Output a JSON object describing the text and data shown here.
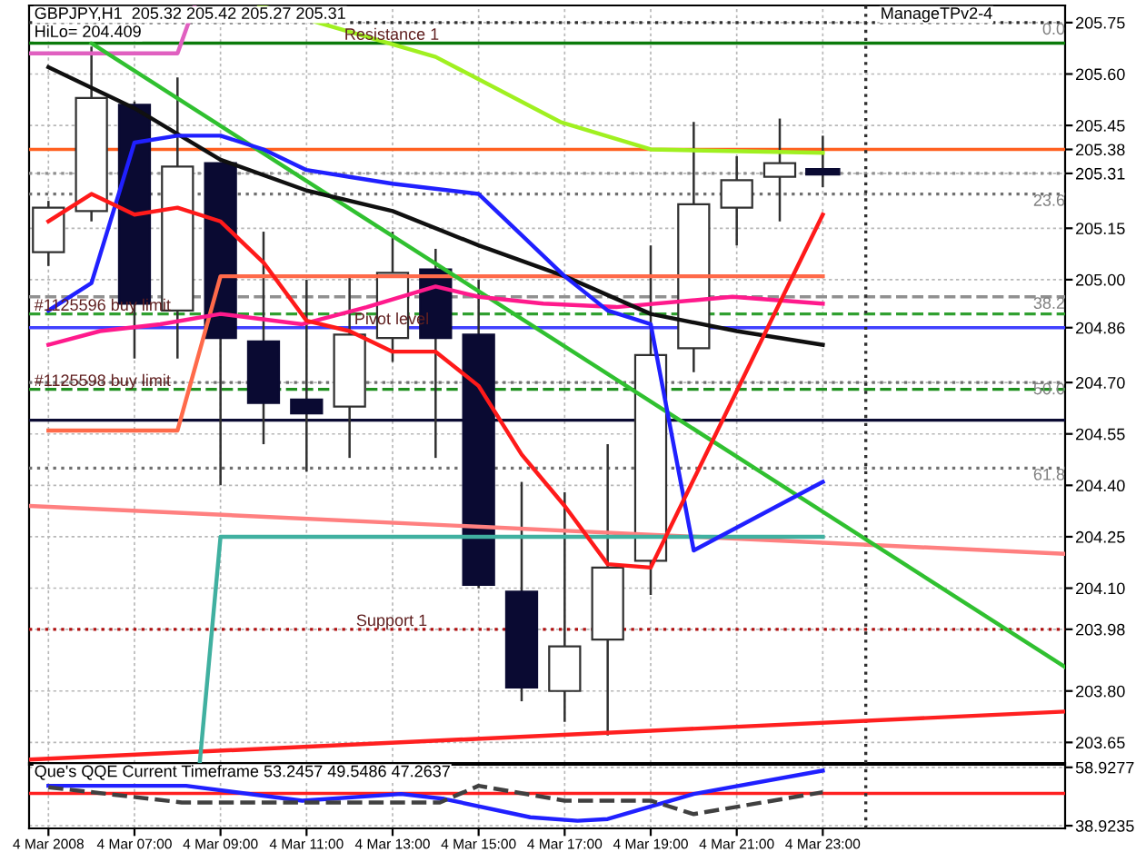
{
  "chart_data": [
    {
      "type": "candlestick",
      "xlim": [
        "2008-03-04T04:33",
        "2008-03-05T04:38"
      ],
      "ylim": [
        203.59,
        205.8
      ],
      "xticks": [
        {
          "value": "2008-03-04T05:00",
          "label": null
        },
        {
          "value": "2008-03-04T07:00",
          "label": null
        },
        {
          "value": "2008-03-04T09:00",
          "label": null
        },
        {
          "value": "2008-03-04T11:00",
          "label": null
        },
        {
          "value": "2008-03-04T13:00",
          "label": null
        },
        {
          "value": "2008-03-04T15:00",
          "label": null
        },
        {
          "value": "2008-03-04T17:00",
          "label": null
        },
        {
          "value": "2008-03-04T19:00",
          "label": null
        },
        {
          "value": "2008-03-04T21:00",
          "label": null
        },
        {
          "value": "2008-03-04T23:00",
          "label": null
        }
      ],
      "yticks": [
        {
          "value": 203.65,
          "label": "203.65"
        },
        {
          "value": 203.8,
          "label": "203.80"
        },
        {
          "value": 203.98,
          "label": "203.98"
        },
        {
          "value": 204.1,
          "label": "204.10"
        },
        {
          "value": 204.25,
          "label": "204.25"
        },
        {
          "value": 204.4,
          "label": "204.40"
        },
        {
          "value": 204.55,
          "label": "204.55"
        },
        {
          "value": 204.7,
          "label": "204.70"
        },
        {
          "value": 204.86,
          "label": "204.86"
        },
        {
          "value": 205.0,
          "label": "205.00"
        },
        {
          "value": 205.15,
          "label": "205.15"
        },
        {
          "value": 205.31,
          "label": "205.31"
        },
        {
          "value": 205.38,
          "label": "205.38"
        },
        {
          "value": 205.45,
          "label": "205.45"
        },
        {
          "value": 205.6,
          "label": "205.60"
        },
        {
          "value": 205.75,
          "label": "205.75"
        }
      ],
      "tick_labels": "y",
      "grid": true,
      "x": [
        "2008-03-04T05:00",
        "2008-03-04T06:00",
        "2008-03-04T07:00",
        "2008-03-04T08:00",
        "2008-03-04T09:00",
        "2008-03-04T10:00",
        "2008-03-04T11:00",
        "2008-03-04T12:00",
        "2008-03-04T13:00",
        "2008-03-04T14:00",
        "2008-03-04T15:00",
        "2008-03-04T16:00",
        "2008-03-04T17:00",
        "2008-03-04T18:00",
        "2008-03-04T19:00",
        "2008-03-04T20:00",
        "2008-03-04T21:00",
        "2008-03-04T22:00",
        "2008-03-04T23:00"
      ],
      "ohlc": [
        [
          205.08,
          205.23,
          205.04,
          205.21
        ],
        [
          205.2,
          205.68,
          205.17,
          205.53
        ],
        [
          205.51,
          205.52,
          204.77,
          204.93
        ],
        [
          204.91,
          205.59,
          204.77,
          205.33
        ],
        [
          205.34,
          205.34,
          204.4,
          204.83
        ],
        [
          204.82,
          205.14,
          204.52,
          204.64
        ],
        [
          204.65,
          205.0,
          204.44,
          204.61
        ],
        [
          204.63,
          205.01,
          204.48,
          204.84
        ],
        [
          204.83,
          205.14,
          204.76,
          205.02
        ],
        [
          205.03,
          205.09,
          204.48,
          204.83
        ],
        [
          204.84,
          205.0,
          204.1,
          204.11
        ],
        [
          204.09,
          204.41,
          203.77,
          203.81
        ],
        [
          203.8,
          204.38,
          203.71,
          203.93
        ],
        [
          203.95,
          204.52,
          203.67,
          204.16
        ],
        [
          204.18,
          205.1,
          204.08,
          204.78
        ],
        [
          204.8,
          205.46,
          204.73,
          205.22
        ],
        [
          205.21,
          205.36,
          205.1,
          205.29
        ],
        [
          205.3,
          205.47,
          205.17,
          205.34
        ],
        [
          205.32,
          205.42,
          205.27,
          205.31
        ]
      ],
      "colors": [
        "#ffffff",
        "#ffffff",
        "#0a0a32",
        "#ffffff",
        "#0a0a32",
        "#0a0a32",
        "#0a0a32",
        "#ffffff",
        "#ffffff",
        "#0a0a32",
        "#0a0a32",
        "#0a0a32",
        "#ffffff",
        "#ffffff",
        "#ffffff",
        "#ffffff",
        "#ffffff",
        "#ffffff",
        "#0a0a32"
      ],
      "series": [
        {
          "type": "line",
          "color": "#ff8080",
          "line_style": "solid",
          "x": [
            "2008-03-04T04:33",
            "2008-03-05T04:38"
          ],
          "values": [
            204.34,
            204.2
          ]
        },
        {
          "type": "line",
          "color": "#ff2020",
          "line_style": "solid",
          "x": [
            "2008-03-04T04:33",
            "2008-03-05T04:38"
          ],
          "values": [
            203.6,
            203.74
          ]
        },
        {
          "type": "line",
          "color": "#ff6a4a",
          "line_style": "solid",
          "x": [
            "2008-03-04T05:00",
            "2008-03-04T08:00",
            "2008-03-04T09:00",
            "2008-03-04T23:00"
          ],
          "values": [
            204.56,
            204.56,
            205.01,
            205.01
          ]
        },
        {
          "type": "line",
          "color": "#40b0a0",
          "line_style": "solid",
          "x": [
            "2008-03-04T08:31",
            "2008-03-04T09:00",
            "2008-03-04T23:00"
          ],
          "values": [
            203.59,
            204.25,
            204.25
          ]
        },
        {
          "type": "line",
          "color": "#e060c0",
          "line_style": "solid",
          "x": [
            "2008-03-04T04:33",
            "2008-03-04T08:00",
            "2008-03-04T08:24"
          ],
          "values": [
            205.66,
            205.66,
            205.8
          ]
        },
        {
          "type": "line",
          "color": "#a0f020",
          "line_style": "solid",
          "x": [
            "2008-03-04T09:54",
            "2008-03-04T14:00",
            "2008-03-04T16:54",
            "2008-03-04T19:00",
            "2008-03-04T23:00"
          ],
          "values": [
            205.8,
            205.65,
            205.46,
            205.38,
            205.37
          ]
        },
        {
          "type": "line",
          "color": "#30c030",
          "line_style": "solid",
          "x": [
            "2008-03-04T06:00",
            "2008-03-05T04:38"
          ],
          "values": [
            205.69,
            203.87
          ]
        },
        {
          "type": "line",
          "color": "#ff1a8c",
          "line_style": "solid",
          "x": [
            "2008-03-04T05:00",
            "2008-03-04T06:12",
            "2008-03-04T07:36",
            "2008-03-04T09:00",
            "2008-03-04T10:54",
            "2008-03-04T12:24",
            "2008-03-04T14:00",
            "2008-03-04T15:00",
            "2008-03-04T16:30",
            "2008-03-04T18:12",
            "2008-03-04T20:54",
            "2008-03-04T23:00"
          ],
          "values": [
            204.81,
            204.85,
            204.87,
            204.9,
            204.87,
            204.92,
            204.98,
            204.95,
            204.93,
            204.92,
            204.95,
            204.93
          ]
        },
        {
          "type": "line",
          "color": "#101010",
          "line_style": "solid",
          "x": [
            "2008-03-04T05:00",
            "2008-03-04T07:00",
            "2008-03-04T09:00",
            "2008-03-04T11:00",
            "2008-03-04T13:00",
            "2008-03-04T15:00",
            "2008-03-04T17:00",
            "2008-03-04T19:00",
            "2008-03-04T21:00",
            "2008-03-04T23:00"
          ],
          "values": [
            205.62,
            205.5,
            205.35,
            205.26,
            205.2,
            205.1,
            205.01,
            204.9,
            204.85,
            204.81
          ]
        },
        {
          "type": "line",
          "color": "#2020ff",
          "line_style": "solid",
          "x": [
            "2008-03-04T05:00",
            "2008-03-04T06:00",
            "2008-03-04T07:00",
            "2008-03-04T08:00",
            "2008-03-04T09:00",
            "2008-03-04T10:00",
            "2008-03-04T11:00",
            "2008-03-04T12:00",
            "2008-03-04T13:00",
            "2008-03-04T15:00",
            "2008-03-04T17:00",
            "2008-03-04T18:00",
            "2008-03-04T19:00",
            "2008-03-04T20:00",
            "2008-03-04T23:00"
          ],
          "values": [
            204.91,
            204.99,
            205.4,
            205.42,
            205.42,
            205.38,
            205.32,
            205.3,
            205.28,
            205.25,
            205.01,
            204.91,
            204.87,
            204.21,
            204.41
          ]
        },
        {
          "type": "line",
          "color": "#ff1a1a",
          "line_style": "solid",
          "x": [
            "2008-03-04T05:00",
            "2008-03-04T06:00",
            "2008-03-04T07:00",
            "2008-03-04T08:00",
            "2008-03-04T09:00",
            "2008-03-04T10:00",
            "2008-03-04T11:00",
            "2008-03-04T12:00",
            "2008-03-04T13:00",
            "2008-03-04T14:00",
            "2008-03-04T15:00",
            "2008-03-04T16:00",
            "2008-03-04T17:00",
            "2008-03-04T18:00",
            "2008-03-04T19:00",
            "2008-03-04T23:00"
          ],
          "values": [
            205.17,
            205.25,
            205.19,
            205.21,
            205.17,
            205.05,
            204.88,
            204.85,
            204.79,
            204.79,
            204.69,
            204.49,
            204.34,
            204.17,
            204.16,
            205.19
          ]
        }
      ],
      "ref_lines": [
        {
          "axis": "y",
          "value": 205.75,
          "color": "#303030",
          "line_style": "dotted"
        },
        {
          "axis": "y",
          "value": 205.69,
          "color": "#0a7a0a",
          "line_style": "solid",
          "label": "Resistance 1"
        },
        {
          "axis": "y",
          "value": 205.38,
          "color": "#ff6020",
          "line_style": "solid"
        },
        {
          "axis": "y",
          "value": 205.31,
          "color": "#909090",
          "line_style": "dotted"
        },
        {
          "axis": "y",
          "value": 205.25,
          "color": "#707070",
          "line_style": "dotted"
        },
        {
          "axis": "y",
          "value": 204.95,
          "color": "#909090",
          "line_style": "dashed"
        },
        {
          "axis": "y",
          "value": 204.9,
          "color": "#30a030",
          "line_style": "dashed",
          "label": "#1125596 buy limit"
        },
        {
          "axis": "y",
          "value": 204.86,
          "color": "#4040ff",
          "line_style": "solid",
          "label": "Pivot level"
        },
        {
          "axis": "y",
          "value": 204.7,
          "color": "#707070",
          "line_style": "dotted"
        },
        {
          "axis": "y",
          "value": 204.68,
          "color": "#209020",
          "line_style": "dashed",
          "label": "#1125598 buy limit"
        },
        {
          "axis": "y",
          "value": 204.59,
          "color": "#0a0a32",
          "line_style": "solid"
        },
        {
          "axis": "y",
          "value": 204.45,
          "color": "#707070",
          "line_style": "dotted"
        },
        {
          "axis": "y",
          "value": 203.98,
          "color": "#b01010",
          "line_style": "dotted",
          "label": "Support 1"
        },
        {
          "axis": "x",
          "value": "2008-03-05T00:00",
          "color": "#303030",
          "line_style": "dotted"
        }
      ],
      "annotations": [
        "GBPJPY,H1  205.32 205.42 205.27 205.31",
        "HiLo= 204.409",
        "ManageTPv2-4",
        {
          "text": "0.0",
          "x": "2008-03-05T04:38",
          "y": 205.75
        },
        {
          "text": "23.6",
          "x": "2008-03-05T04:38",
          "y": 205.25
        },
        {
          "text": "38.2",
          "x": "2008-03-05T04:38",
          "y": 204.95
        },
        {
          "text": "50.0",
          "x": "2008-03-05T04:38",
          "y": 204.7
        },
        {
          "text": "61.8",
          "x": "2008-03-05T04:38",
          "y": 204.45
        }
      ]
    },
    {
      "type": "line",
      "xlim": [
        "2008-03-04T04:33",
        "2008-03-05T04:38"
      ],
      "ylim": [
        38.0,
        59.8
      ],
      "xticks": [
        {
          "value": "2008-03-04T05:00",
          "label": "4 Mar 2008"
        },
        {
          "value": "2008-03-04T07:00",
          "label": "4 Mar 07:00"
        },
        {
          "value": "2008-03-04T09:00",
          "label": "4 Mar 09:00"
        },
        {
          "value": "2008-03-04T11:00",
          "label": "4 Mar 11:00"
        },
        {
          "value": "2008-03-04T13:00",
          "label": "4 Mar 13:00"
        },
        {
          "value": "2008-03-04T15:00",
          "label": "4 Mar 15:00"
        },
        {
          "value": "2008-03-04T17:00",
          "label": "4 Mar 17:00"
        },
        {
          "value": "2008-03-04T19:00",
          "label": "4 Mar 19:00"
        },
        {
          "value": "2008-03-04T21:00",
          "label": "4 Mar 21:00"
        },
        {
          "value": "2008-03-04T23:00",
          "label": "4 Mar 23:00"
        }
      ],
      "yticks": [
        38.9235,
        58.9277
      ],
      "grid": true,
      "series": [
        {
          "color": "#2020ff",
          "line_style": "solid",
          "x": [
            "2008-03-04T05:00",
            "2008-03-04T08:12",
            "2008-03-04T10:54",
            "2008-03-04T13:12",
            "2008-03-04T14:12",
            "2008-03-04T16:12",
            "2008-03-04T17:18",
            "2008-03-04T18:00",
            "2008-03-04T20:00",
            "2008-03-04T23:00"
          ],
          "values": [
            52.6,
            52.6,
            47.5,
            49.8,
            48.1,
            41.8,
            40.6,
            41.2,
            49.8,
            57.8
          ]
        },
        {
          "color": "#404040",
          "line_style": "dashed",
          "x": [
            "2008-03-04T05:00",
            "2008-03-04T08:06",
            "2008-03-04T14:06",
            "2008-03-04T15:00",
            "2008-03-04T17:00",
            "2008-03-04T19:00",
            "2008-03-04T20:00",
            "2008-03-04T23:00"
          ],
          "values": [
            52.1,
            46.9,
            46.9,
            52.6,
            47.5,
            47.5,
            42.9,
            50.4
          ]
        }
      ],
      "ref_lines": [
        {
          "axis": "y",
          "value": 50,
          "color": "#ff2020",
          "line_style": "solid"
        },
        {
          "axis": "x",
          "value": "2008-03-05T00:00",
          "color": "#303030",
          "line_style": "dotted"
        }
      ],
      "annotations": [
        "Que's QQE Current Timeframe 53.2457 49.5486 47.2637"
      ]
    }
  ]
}
